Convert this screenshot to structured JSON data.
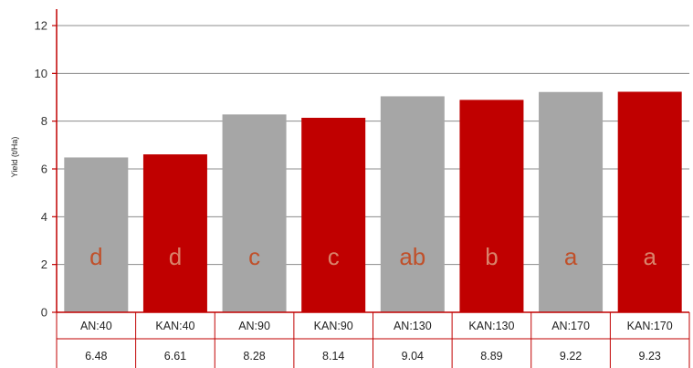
{
  "chart_data": {
    "type": "bar",
    "ylabel": "Yield (t/Ha)",
    "ylim": [
      0,
      12
    ],
    "yticks": [
      0,
      2,
      4,
      6,
      8,
      10,
      12
    ],
    "grid": true,
    "categories": [
      "AN:40",
      "KAN:40",
      "AN:90",
      "KAN:90",
      "AN:130",
      "KAN:130",
      "AN:170",
      "KAN:170"
    ],
    "values": [
      6.48,
      6.61,
      8.28,
      8.14,
      9.04,
      8.89,
      9.22,
      9.23
    ],
    "value_labels": [
      "6.48",
      "6.61",
      "8.28",
      "8.14",
      "9.04",
      "8.89",
      "9.22",
      "9.23"
    ],
    "significance_letters": [
      "d",
      "d",
      "c",
      "c",
      "ab",
      "b",
      "a",
      "a"
    ],
    "bar_colors": [
      "#a6a6a6",
      "#c00000",
      "#a6a6a6",
      "#c00000",
      "#a6a6a6",
      "#c00000",
      "#a6a6a6",
      "#c00000"
    ],
    "letter_colors": [
      "#c0502a",
      "#d9826a",
      "#c0502a",
      "#d9826a",
      "#c0502a",
      "#d9826a",
      "#c0502a",
      "#d9826a"
    ],
    "axis_color": "#c00000",
    "grid_color": "#8c8c8c"
  }
}
